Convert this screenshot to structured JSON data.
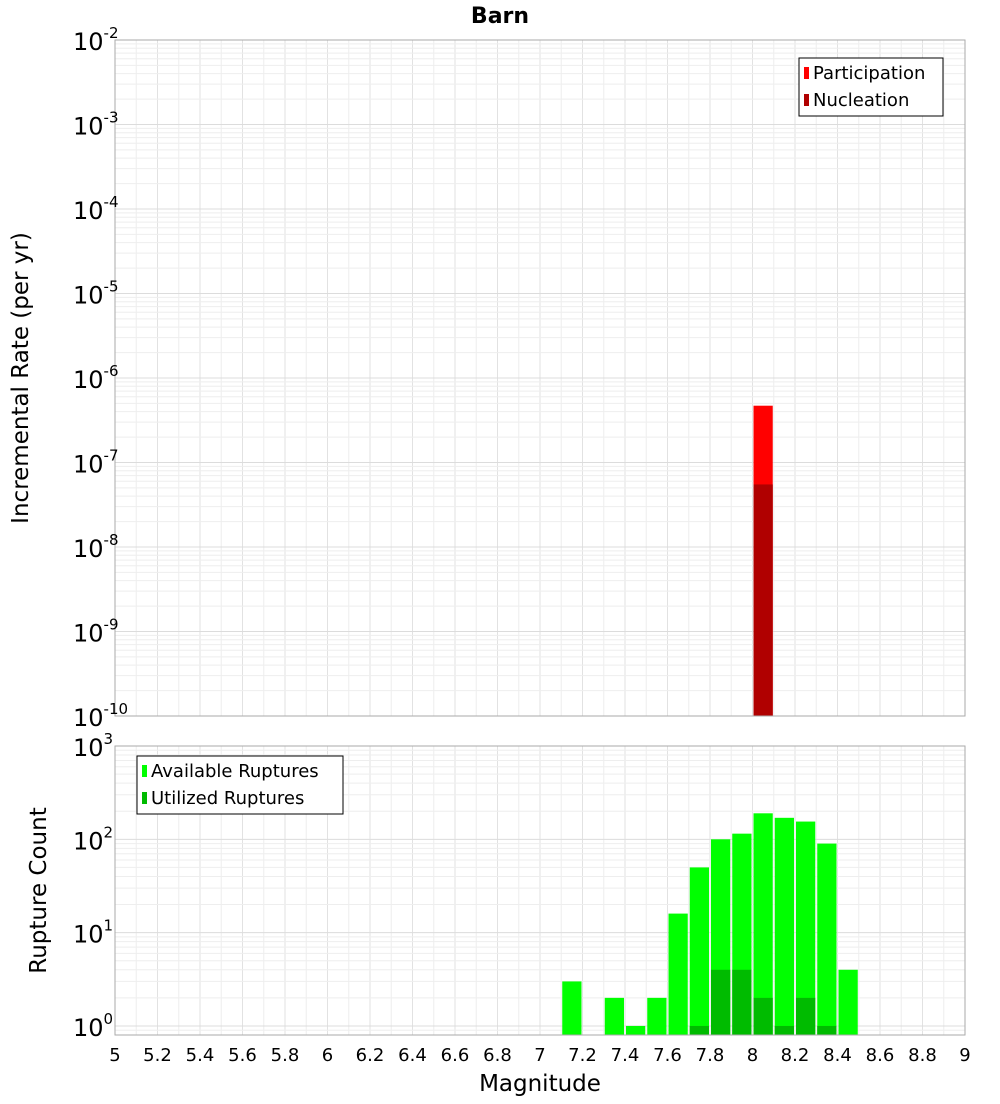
{
  "chart_data": [
    {
      "type": "bar",
      "title": "Barn",
      "xlabel": "",
      "ylabel": "Incremental Rate (per yr)",
      "xlim": [
        5,
        9
      ],
      "ylim": [
        1e-10,
        0.01
      ],
      "yscale": "log",
      "ytick_exponents": [
        "-2",
        "-3",
        "-4",
        "-5",
        "-6",
        "-7",
        "-8",
        "-9",
        "-10"
      ],
      "grid": true,
      "legend_position": "top-right",
      "bar_width": 0.1,
      "series": [
        {
          "name": "Participation",
          "color": "#ff0000",
          "x": [
            8.05
          ],
          "values": [
            4.7e-07
          ]
        },
        {
          "name": "Nucleation",
          "color": "#b00000",
          "x": [
            8.05
          ],
          "values": [
            5.5e-08
          ]
        }
      ]
    },
    {
      "type": "bar",
      "title": "",
      "xlabel": "Magnitude",
      "ylabel": "Rupture Count",
      "xlim": [
        5,
        9
      ],
      "ylim": [
        0.8,
        1000
      ],
      "yscale": "log",
      "ytick_exponents": [
        "3",
        "2",
        "1",
        "0"
      ],
      "xticks": [
        "5",
        "5.2",
        "5.4",
        "5.6",
        "5.8",
        "6",
        "6.2",
        "6.4",
        "6.6",
        "6.8",
        "7",
        "7.2",
        "7.4",
        "7.6",
        "7.8",
        "8",
        "8.2",
        "8.4",
        "8.6",
        "8.8",
        "9"
      ],
      "grid": true,
      "legend_position": "top-left",
      "bar_width": 0.1,
      "series": [
        {
          "name": "Available Ruptures",
          "color": "#00ff00",
          "x": [
            7.15,
            7.35,
            7.45,
            7.55,
            7.65,
            7.75,
            7.85,
            7.95,
            8.05,
            8.15,
            8.25,
            8.35,
            8.45
          ],
          "values": [
            3,
            2,
            1,
            2,
            16,
            50,
            100,
            115,
            190,
            170,
            155,
            90,
            4
          ]
        },
        {
          "name": "Utilized Ruptures",
          "color": "#00bb00",
          "x": [
            7.75,
            7.85,
            7.95,
            8.05,
            8.15,
            8.25,
            8.35
          ],
          "values": [
            1,
            4,
            4,
            2,
            1,
            2,
            1
          ]
        }
      ]
    }
  ]
}
